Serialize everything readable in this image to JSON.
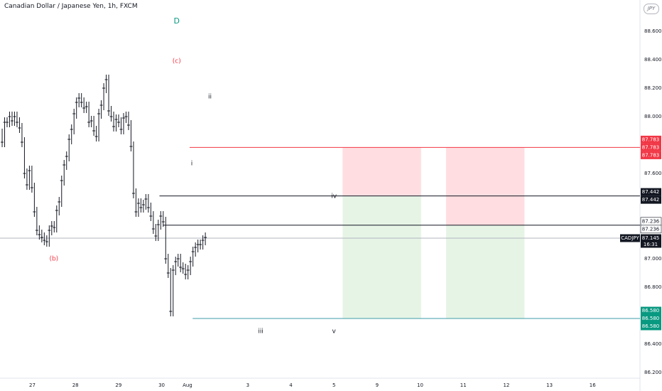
{
  "header": {
    "title": "Canadian Dollar / Japanese Yen, 1h, FXCM",
    "currency_badge": "JPY"
  },
  "colors": {
    "candle": "#131722",
    "wave_red": "#f23645",
    "wave_green": "#089981",
    "stop_zone": "#ffdde0",
    "target_zone": "#e6f4e6",
    "target_line": "#3d9ba8",
    "price_label": "#131722"
  },
  "chart_data": {
    "type": "candlestick",
    "symbol": "CADJPY",
    "ylim": [
      86.16,
      88.82
    ],
    "y_ticks": [
      "88.600",
      "88.400",
      "88.200",
      "88.000",
      "87.800",
      "87.600",
      "87.400",
      "87.200",
      "87.000",
      "86.800",
      "86.600",
      "86.400",
      "86.200"
    ],
    "y_tick_values": [
      88.6,
      88.4,
      88.2,
      88.0,
      87.8,
      87.6,
      87.4,
      87.2,
      87.0,
      86.8,
      86.6,
      86.4,
      86.2
    ],
    "x_ticks": [
      "27",
      "28",
      "29",
      "30",
      "Aug",
      "3",
      "4",
      "5",
      "9",
      "10",
      "11",
      "12",
      "13",
      "16"
    ],
    "x_tick_positions": [
      0.4,
      1.4,
      2.4,
      3.4,
      4.0,
      5.4,
      6.4,
      7.4,
      8.4,
      9.4,
      10.4,
      11.4,
      12.4,
      13.4
    ],
    "x_range": [
      -0.35,
      14.5
    ],
    "closes": [
      87.82,
      87.96,
      87.96,
      88.0,
      87.97,
      88.0,
      87.96,
      87.92,
      87.82,
      87.6,
      87.52,
      87.62,
      87.5,
      87.33,
      87.2,
      87.17,
      87.15,
      87.13,
      87.12,
      87.2,
      87.23,
      87.22,
      87.34,
      87.4,
      87.55,
      87.66,
      87.72,
      87.84,
      87.91,
      88.02,
      88.1,
      88.13,
      88.1,
      88.06,
      88.07,
      87.96,
      87.97,
      87.9,
      87.86,
      88.02,
      88.08,
      88.2,
      88.26,
      88.04,
      88.0,
      87.93,
      87.98,
      87.96,
      87.91,
      87.99,
      88.0,
      87.94,
      87.79,
      87.46,
      87.33,
      87.39,
      87.36,
      87.38,
      87.42,
      87.36,
      87.3,
      87.21,
      87.16,
      87.24,
      87.3,
      87.26,
      87.0,
      86.9,
      86.63,
      86.92,
      86.98,
      87.0,
      86.94,
      86.93,
      86.89,
      86.92,
      86.98,
      87.05,
      87.08,
      87.1,
      87.1,
      87.13,
      87.15
    ],
    "candle_x_start": -0.3,
    "candle_x_step": 0.0575,
    "current_price": 87.145,
    "current_price_label": "87.145",
    "current_symbol_label": "CADJPY",
    "current_time_label": "16:31",
    "levels": [
      {
        "name": "stop-level",
        "value": 87.783,
        "labels": [
          "87.783",
          "87.783",
          "87.783"
        ],
        "color": "#f23645",
        "x_from": 4.05
      },
      {
        "name": "wave-iv-level",
        "value": 87.442,
        "labels": [
          "87.442",
          "87.442"
        ],
        "color": "#131722",
        "x_from": 3.35
      },
      {
        "name": "entry-level",
        "value": 87.236,
        "labels": [
          "87.236",
          "87.236"
        ],
        "color": "#131722",
        "x_from": 3.43
      },
      {
        "name": "target-level",
        "value": 86.58,
        "labels": [
          "86.580",
          "86.580",
          "86.580"
        ],
        "color": "#089981",
        "x_from": 4.12
      }
    ],
    "zones": [
      {
        "x0": 7.6,
        "x1": 9.42,
        "stop_top": 87.783,
        "entry": 87.442,
        "target": 86.58
      },
      {
        "x0": 10.0,
        "x1": 11.82,
        "stop_top": 87.783,
        "entry": 87.236,
        "target": 86.58
      }
    ],
    "wave_labels": [
      {
        "text": "D",
        "x": 3.75,
        "y": 88.67,
        "color": "green"
      },
      {
        "text": "(c)",
        "x": 3.75,
        "y": 88.39,
        "color": "red"
      },
      {
        "text": "(b)",
        "x": 0.9,
        "y": 87.0,
        "color": "red"
      },
      {
        "text": "ii",
        "x": 4.52,
        "y": 88.14,
        "color": "dark"
      },
      {
        "text": "i",
        "x": 4.1,
        "y": 87.67,
        "color": "dark"
      },
      {
        "text": "iv",
        "x": 7.4,
        "y": 87.44,
        "color": "dark"
      },
      {
        "text": "iii",
        "x": 5.7,
        "y": 86.49,
        "color": "dark"
      },
      {
        "text": "v",
        "x": 7.4,
        "y": 86.49,
        "color": "dark"
      }
    ]
  }
}
